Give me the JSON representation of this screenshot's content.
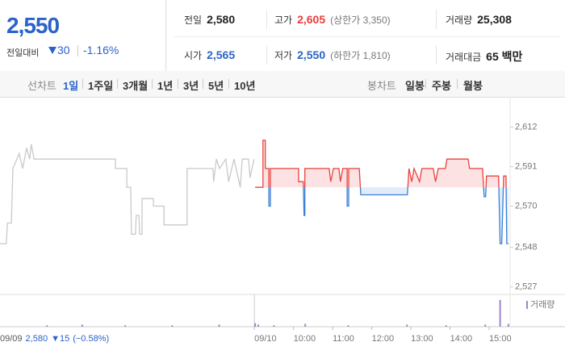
{
  "summary": {
    "price": "2,550",
    "change_label": "전일대비",
    "change": "30",
    "change_pct": "-1.16%"
  },
  "stats": [
    [
      {
        "label": "전일",
        "value": "2,580"
      },
      {
        "label": "고가",
        "value": "2,605",
        "note": "(상한가 3,350)"
      },
      {
        "label": "거래량",
        "value": "25,308"
      }
    ],
    [
      {
        "label": "시가",
        "value": "2,565"
      },
      {
        "label": "저가",
        "value": "2,550",
        "note": "(하한가 1,810)"
      },
      {
        "label": "거래대금",
        "value": "65 백만"
      }
    ]
  ],
  "tabs": {
    "line_label": "선차트",
    "line": [
      "1일",
      "1주일",
      "3개월",
      "1년",
      "3년",
      "5년",
      "10년"
    ],
    "candle_label": "봉차트",
    "candle": [
      "일봉",
      "주봉",
      "월봉"
    ]
  },
  "chart_data": {
    "type": "line",
    "xlim": [
      0,
      13.2
    ],
    "ylim": [
      2523,
      2626
    ],
    "xticks": [
      {
        "value": 6.5,
        "label": "09/10"
      },
      {
        "value": 7.5,
        "label": "10:00"
      },
      {
        "value": 8.5,
        "label": "11:00"
      },
      {
        "value": 9.5,
        "label": "12:00"
      },
      {
        "value": 10.5,
        "label": "13:00"
      },
      {
        "value": 11.5,
        "label": "14:00"
      },
      {
        "value": 12.5,
        "label": "15:00"
      }
    ],
    "yticks": [
      {
        "value": 2612,
        "label": "2,612"
      },
      {
        "value": 2591,
        "label": "2,591"
      },
      {
        "value": 2570,
        "label": "2,570"
      },
      {
        "value": 2548,
        "label": "2,548"
      },
      {
        "value": 2527,
        "label": "2,527"
      }
    ],
    "grid": false,
    "baseline": 2580,
    "series": [
      {
        "color": "#c9c9c9",
        "x": [
          0,
          0.16,
          0.19,
          0.29,
          0.33,
          0.49,
          0.58,
          0.68,
          0.76,
          0.8,
          0.87,
          2.95,
          2.95,
          3.24,
          3.24,
          3.34,
          3.36,
          3.46,
          3.48,
          3.55,
          3.57,
          3.63,
          3.63,
          3.92,
          3.92,
          4.19,
          4.19,
          4.78,
          4.78,
          5.44,
          5.46,
          5.53,
          5.61,
          5.77,
          5.84,
          5.98,
          6.14,
          6.19,
          6.35,
          6.39,
          6.49
        ],
        "values": [
          2550,
          2550,
          2561,
          2561,
          2590,
          2598,
          2590,
          2601,
          2595,
          2603,
          2595,
          2595,
          2590,
          2590,
          2580,
          2580,
          2555,
          2555,
          2565,
          2565,
          2555,
          2555,
          2574,
          2574,
          2570,
          2570,
          2560,
          2560,
          2590,
          2590,
          2583,
          2595,
          2590,
          2595,
          2583,
          2595,
          2580,
          2595,
          2595,
          2585,
          2595
        ]
      },
      {
        "color": "#e8413e",
        "color_down": "#3a7fd8",
        "x": [
          6.52,
          6.72,
          6.72,
          6.78,
          6.78,
          6.87,
          6.87,
          6.91,
          6.91,
          7.63,
          7.63,
          7.75,
          7.77,
          7.79,
          7.79,
          8.41,
          8.45,
          8.52,
          8.66,
          8.7,
          8.76,
          8.87,
          8.87,
          8.91,
          8.91,
          9.18,
          9.22,
          10.41,
          10.45,
          10.52,
          10.58,
          10.72,
          10.78,
          11.07,
          11.13,
          11.2,
          11.38,
          11.42,
          11.96,
          12.0,
          12.33,
          12.37,
          12.41,
          12.43,
          12.74,
          12.78,
          12.82,
          12.87,
          12.93,
          12.95,
          12.99
        ],
        "values": [
          2580,
          2580,
          2605,
          2605,
          2590,
          2590,
          2570,
          2570,
          2590,
          2590,
          2583,
          2583,
          2565,
          2565,
          2590,
          2590,
          2583,
          2590,
          2590,
          2583,
          2590,
          2590,
          2570,
          2570,
          2590,
          2590,
          2576,
          2576,
          2590,
          2583,
          2590,
          2583,
          2590,
          2590,
          2583,
          2590,
          2590,
          2595,
          2595,
          2590,
          2590,
          2575,
          2575,
          2586,
          2586,
          2550,
          2550,
          2586,
          2586,
          2550,
          2550
        ]
      }
    ],
    "volume": {
      "name": "거래량",
      "color": "#9b87c9",
      "ylim": [
        0,
        40
      ],
      "x": [
        1.2,
        2.1,
        3.2,
        4.4,
        5.6,
        6.52,
        6.6,
        7.0,
        7.8,
        8.9,
        10.4,
        11.4,
        12.4,
        12.78,
        12.99
      ],
      "values": [
        2,
        3,
        2,
        2,
        3,
        5,
        3,
        2,
        4,
        2,
        3,
        2,
        3,
        38,
        4
      ]
    },
    "info": {
      "date": "09/09",
      "price": "2,580",
      "change": "▼15",
      "change_pct": "(−0.58%)"
    }
  }
}
